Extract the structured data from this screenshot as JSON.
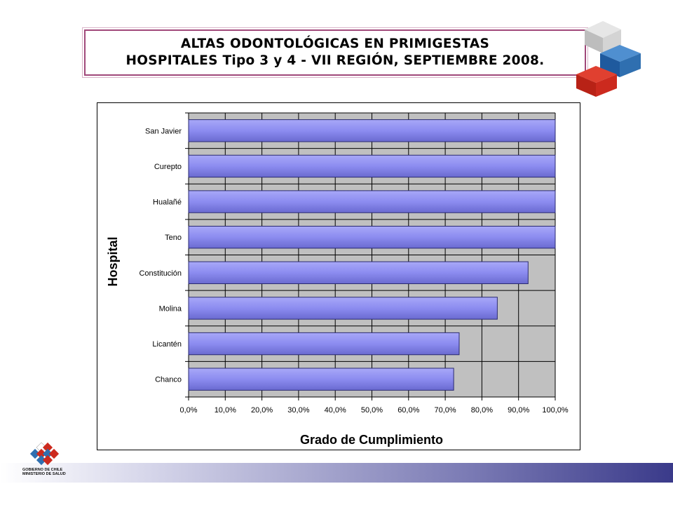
{
  "title": {
    "line1": "ALTAS ODONTOLÓGICAS EN PRIMIGESTAS",
    "line2": "HOSPITALES Tipo 3 y 4 - VII REGIÓN, SEPTIEMBRE 2008."
  },
  "logo": {
    "line1": "GOBIERNO DE CHILE",
    "line2": "MINISTERIO DE SALUD"
  },
  "colors": {
    "bar": "#8c8cf0",
    "bar_dark": "#5b5bc0",
    "plot_bg": "#c0c0c0",
    "cube_gray": "#c8c8c8",
    "cube_blue": "#2f6fb0",
    "cube_red": "#cc2a1e"
  },
  "chart_data": {
    "type": "bar",
    "orientation": "horizontal",
    "title": "",
    "xlabel": "Grado de Cumplimiento",
    "ylabel": "Hospital",
    "categories": [
      "San Javier",
      "Curepto",
      "Hualañé",
      "Teno",
      "Constitución",
      "Molina",
      "Licantén",
      "Chanco"
    ],
    "values": [
      100.0,
      100.0,
      100.0,
      100.0,
      92.6,
      84.2,
      73.8,
      72.3
    ],
    "xlim": [
      0,
      100
    ],
    "xticks": [
      "0,0%",
      "10,0%",
      "20,0%",
      "30,0%",
      "40,0%",
      "50,0%",
      "60,0%",
      "70,0%",
      "80,0%",
      "90,0%",
      "100,0%"
    ],
    "grid": true,
    "legend": "none"
  }
}
